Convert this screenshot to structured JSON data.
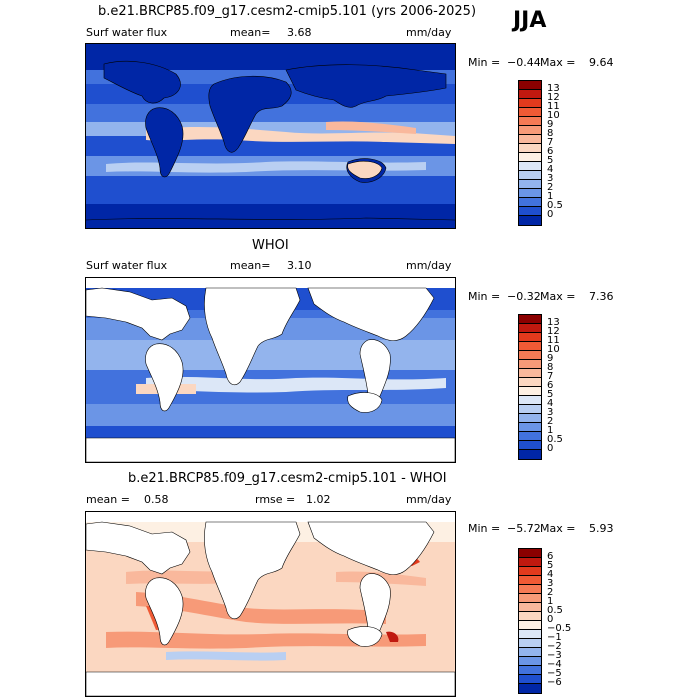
{
  "season": "JJA",
  "panels": [
    {
      "title": "b.e21.BRCP85.f09_g17.cesm2-cmip5.101 (yrs 2006-2025)",
      "left_label": "Surf water flux",
      "stat_label": "mean=",
      "stat_value": "3.68",
      "units": "mm/day",
      "min_label": "Min =",
      "min_value": "−0.44",
      "max_label": "Max =",
      "max_value": "9.64",
      "colorbar_labels": [
        "13",
        "12",
        "11",
        "10",
        "9",
        "8",
        "7",
        "6",
        "5",
        "4",
        "3",
        "2",
        "1",
        "0.5",
        "0"
      ],
      "colorbar_colors": [
        "#8b0000",
        "#c0190f",
        "#e23a1d",
        "#f05a35",
        "#f57a55",
        "#f79a78",
        "#f9b89c",
        "#fbd7c1",
        "#fdf0e3",
        "#dce7f7",
        "#b9cff2",
        "#93b4ed",
        "#6b95e6",
        "#4272dd",
        "#1f4fcf",
        "#0026a6"
      ]
    },
    {
      "title": "WHOI",
      "left_label": "Surf water flux",
      "stat_label": "mean=",
      "stat_value": "3.10",
      "units": "mm/day",
      "min_label": "Min =",
      "min_value": "−0.32",
      "max_label": "Max =",
      "max_value": "7.36",
      "colorbar_labels": [
        "13",
        "12",
        "11",
        "10",
        "9",
        "8",
        "7",
        "6",
        "5",
        "4",
        "3",
        "2",
        "1",
        "0.5",
        "0"
      ],
      "colorbar_colors": [
        "#8b0000",
        "#c0190f",
        "#e23a1d",
        "#f05a35",
        "#f57a55",
        "#f79a78",
        "#f9b89c",
        "#fbd7c1",
        "#fdf0e3",
        "#dce7f7",
        "#b9cff2",
        "#93b4ed",
        "#6b95e6",
        "#4272dd",
        "#1f4fcf",
        "#0026a6"
      ]
    },
    {
      "title": "b.e21.BRCP85.f09_g17.cesm2-cmip5.101 - WHOI",
      "left_label": "mean =",
      "left_value": "0.58",
      "stat_label": "rmse =",
      "stat_value": "1.02",
      "units": "mm/day",
      "min_label": "Min =",
      "min_value": "−5.72",
      "max_label": "Max =",
      "max_value": "5.93",
      "colorbar_labels": [
        "6",
        "5",
        "4",
        "3",
        "2",
        "1",
        "0.5",
        "0",
        "−0.5",
        "−1",
        "−2",
        "−3",
        "−4",
        "−5",
        "−6"
      ],
      "colorbar_colors": [
        "#8b0000",
        "#c0190f",
        "#e23a1d",
        "#f05a35",
        "#f57a55",
        "#f79a78",
        "#f9b89c",
        "#fbd7c1",
        "#fdf0e3",
        "#dce7f7",
        "#b9cff2",
        "#93b4ed",
        "#6b95e6",
        "#4272dd",
        "#1f4fcf",
        "#0026a6"
      ]
    }
  ]
}
